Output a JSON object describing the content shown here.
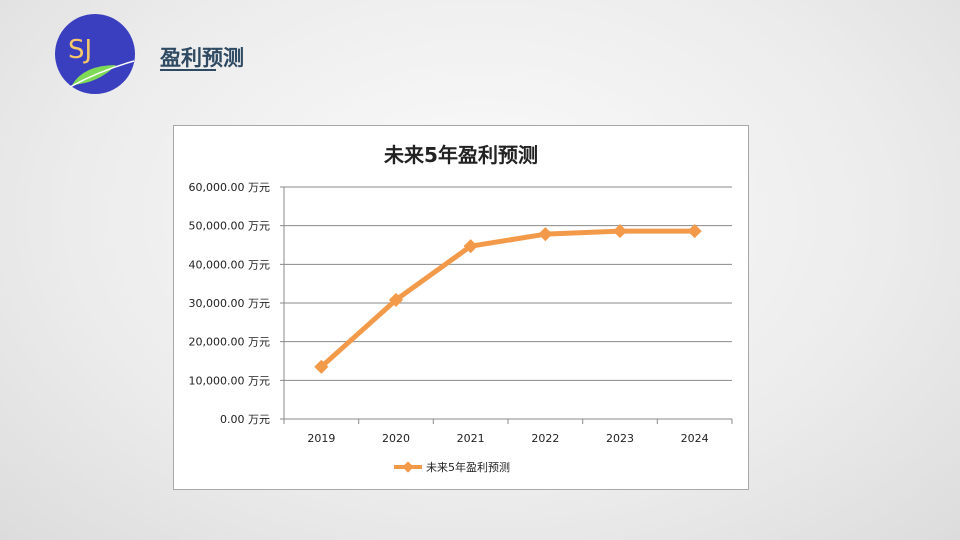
{
  "header": {
    "title": "盈利预测",
    "logo_text": "SJ"
  },
  "chart_data": {
    "type": "line",
    "title": "未来5年盈利预测",
    "categories": [
      "2019",
      "2020",
      "2021",
      "2022",
      "2023",
      "2024"
    ],
    "series": [
      {
        "name": "未来5年盈利预测",
        "values": [
          13500,
          30800,
          44700,
          47800,
          48600,
          48600
        ],
        "color": "#f39a4a"
      }
    ],
    "yticks": [
      "0.00 万元",
      "10,000.00 万元",
      "20,000.00 万元",
      "30,000.00 万元",
      "40,000.00 万元",
      "50,000.00 万元",
      "60,000.00 万元"
    ],
    "ylim": [
      0,
      60000
    ],
    "grid": true,
    "legend": "bottom",
    "xlabel": "",
    "ylabel": ""
  }
}
